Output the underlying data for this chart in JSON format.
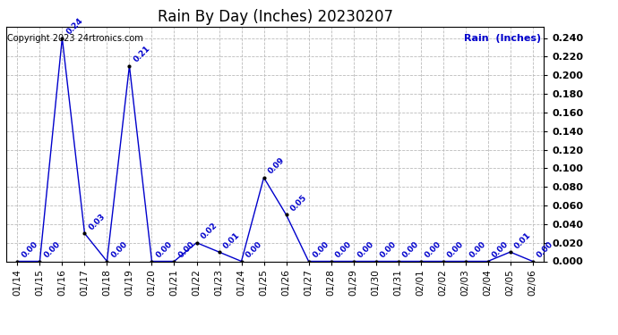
{
  "title": "Rain By Day (Inches) 20230207",
  "copyright_text": "Copyright 2023 24rtronics.com",
  "legend_text": "Rain  (Inches)",
  "dates": [
    "01/14",
    "01/15",
    "01/16",
    "01/17",
    "01/18",
    "01/19",
    "01/20",
    "01/21",
    "01/22",
    "01/23",
    "01/24",
    "01/25",
    "01/26",
    "01/27",
    "01/28",
    "01/29",
    "01/30",
    "01/31",
    "02/01",
    "02/02",
    "02/03",
    "02/04",
    "02/05",
    "02/06"
  ],
  "values": [
    0.0,
    0.0,
    0.24,
    0.03,
    0.0,
    0.21,
    0.0,
    0.0,
    0.02,
    0.01,
    0.0,
    0.09,
    0.05,
    0.0,
    0.0,
    0.0,
    0.0,
    0.0,
    0.0,
    0.0,
    0.0,
    0.0,
    0.01,
    0.0
  ],
  "line_color": "#0000cc",
  "marker_color": "#000000",
  "label_color": "#0000cc",
  "bg_color": "#ffffff",
  "grid_color": "#bbbbbb",
  "ylim": [
    0.0,
    0.252
  ],
  "yticks": [
    0.0,
    0.02,
    0.04,
    0.06,
    0.08,
    0.1,
    0.12,
    0.14,
    0.16,
    0.18,
    0.2,
    0.22,
    0.24
  ],
  "title_fontsize": 12,
  "label_fontsize": 6.5,
  "copyright_fontsize": 7,
  "legend_fontsize": 8,
  "tick_fontsize": 7.5,
  "ytick_fontsize": 8
}
